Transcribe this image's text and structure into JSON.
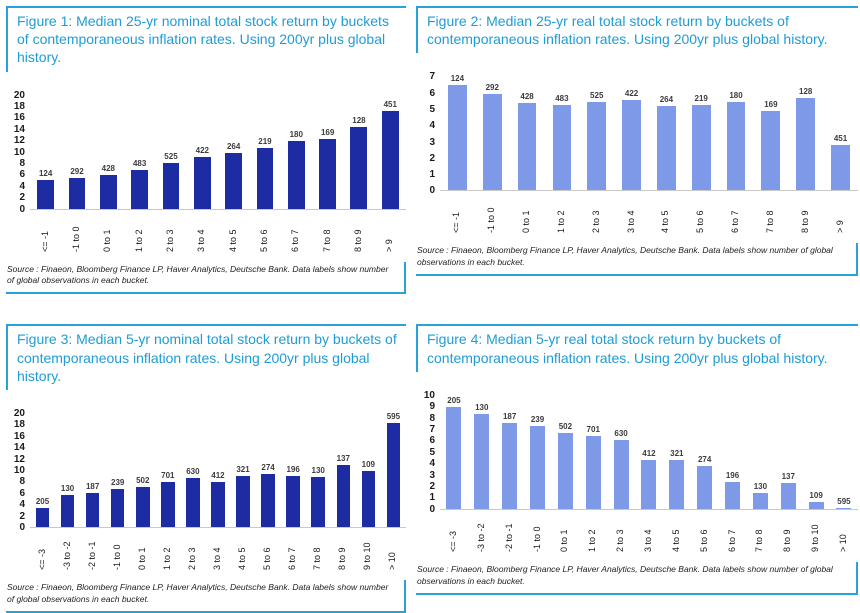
{
  "colors": {
    "title_blue": "#1e9cd6",
    "border_blue": "#29a1d9",
    "navy_bar": "#1e2ca3",
    "light_blue_bar": "#7d99e8",
    "axis_line": "#c9c9c9",
    "data_label_gray": "#3c3c3c"
  },
  "source_note": "Source : Finaeon, Bloomberg Finance LP, Haver Analytics, Deutsche Bank. Data labels show number of global observations in each bucket.",
  "chart_data": [
    {
      "type": "bar",
      "figure_id": "figure-1",
      "title": "Figure 1: Median 25-yr nominal total stock return by buckets of contemporaneous inflation rates. Using 200yr plus global history.",
      "source_note": "Source : Finaeon, Bloomberg Finance LP, Haver Analytics, Deutsche Bank. Data labels show number of global observations in each bucket.",
      "categories": [
        "<= -1",
        "-1 to 0",
        "0 to 1",
        "1 to 2",
        "2 to 3",
        "3 to 4",
        "4 to 5",
        "5 to 6",
        "6 to 7",
        "7 to 8",
        "8 to 9",
        "> 9"
      ],
      "values": [
        5.0,
        5.4,
        5.9,
        6.8,
        8.1,
        9.2,
        9.8,
        10.8,
        11.9,
        12.4,
        14.4,
        17.2
      ],
      "bar_labels": [
        "124",
        "292",
        "428",
        "483",
        "525",
        "422",
        "264",
        "219",
        "180",
        "169",
        "128",
        "451"
      ],
      "ylim": [
        0,
        20
      ],
      "ytick_step": 2,
      "bar_color": "#1e2ca3",
      "grid": false,
      "legend": false
    },
    {
      "type": "bar",
      "figure_id": "figure-2",
      "title": "Figure 2: Median 25-yr real total stock return by buckets of contemporaneous inflation rates. Using 200yr plus global history.",
      "source_note": "Source : Finaeon, Bloomberg Finance LP, Haver Analytics, Deutsche Bank. Data labels show number of global observations in each bucket.",
      "categories": [
        "<= -1",
        "-1 to 0",
        "0 to 1",
        "1 to 2",
        "2 to 3",
        "3 to 4",
        "4 to 5",
        "5 to 6",
        "6 to 7",
        "7 to 8",
        "8 to 9",
        "> 9"
      ],
      "values": [
        6.5,
        6.0,
        5.4,
        5.3,
        5.5,
        5.6,
        5.2,
        5.3,
        5.5,
        4.9,
        5.7,
        2.8
      ],
      "bar_labels": [
        "124",
        "292",
        "428",
        "483",
        "525",
        "422",
        "264",
        "219",
        "180",
        "169",
        "128",
        "451"
      ],
      "ylim": [
        0,
        7
      ],
      "ytick_step": 1,
      "bar_color": "#7d99e8",
      "grid": false,
      "legend": false
    },
    {
      "type": "bar",
      "figure_id": "figure-3",
      "title": "Figure 3: Median 5-yr nominal total stock return by buckets of contemporaneous inflation rates. Using 200yr plus global history.",
      "source_note": "Source : Finaeon, Bloomberg Finance LP, Haver Analytics, Deutsche Bank. Data labels show number of global observations in each bucket.",
      "categories": [
        "<= -3",
        "-3 to -2",
        "-2 to -1",
        "-1 to 0",
        "0 to 1",
        "1 to 2",
        "2 to 3",
        "3 to 4",
        "4 to 5",
        "5 to 6",
        "6 to 7",
        "7 to 8",
        "8 to 9",
        "9 to 10",
        "> 10"
      ],
      "values": [
        3.4,
        5.6,
        6.0,
        6.8,
        7.0,
        8.0,
        8.6,
        7.9,
        9.0,
        9.4,
        9.0,
        8.9,
        10.9,
        9.9,
        18.4
      ],
      "bar_labels": [
        "205",
        "130",
        "187",
        "239",
        "502",
        "701",
        "630",
        "412",
        "321",
        "274",
        "196",
        "130",
        "137",
        "109",
        "595"
      ],
      "ylim": [
        0,
        20
      ],
      "ytick_step": 2,
      "bar_color": "#1e2ca3",
      "grid": false,
      "legend": false
    },
    {
      "type": "bar",
      "figure_id": "figure-4",
      "title": "Figure 4: Median 5-yr real total stock return by buckets of contemporaneous inflation rates. Using 200yr plus global history.",
      "source_note": "Source : Finaeon, Bloomberg Finance LP, Haver Analytics, Deutsche Bank. Data labels show number of global observations in each bucket.",
      "categories": [
        "<= -3",
        "-3 to -2",
        "-2 to -1",
        "-1 to 0",
        "0 to 1",
        "1 to 2",
        "2 to 3",
        "3 to 4",
        "4 to 5",
        "5 to 6",
        "6 to 7",
        "7 to 8",
        "8 to 9",
        "9 to 10",
        "> 10"
      ],
      "values": [
        9.0,
        8.4,
        7.6,
        7.3,
        6.7,
        6.4,
        6.1,
        4.3,
        4.3,
        3.8,
        2.4,
        1.4,
        2.3,
        0.6,
        0.1
      ],
      "bar_labels": [
        "205",
        "130",
        "187",
        "239",
        "502",
        "701",
        "630",
        "412",
        "321",
        "274",
        "196",
        "130",
        "137",
        "109",
        "595"
      ],
      "ylim": [
        0,
        10
      ],
      "ytick_step": 1,
      "bar_color": "#7d99e8",
      "grid": false,
      "legend": false
    }
  ]
}
